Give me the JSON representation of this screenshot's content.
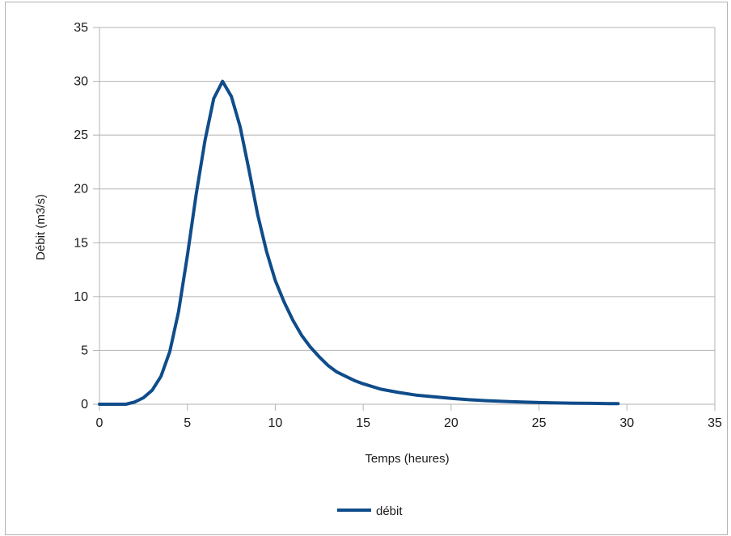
{
  "chart_data": {
    "type": "line",
    "xlabel": "Temps (heures)",
    "ylabel": "Débit (m3/s)",
    "xlim": [
      0,
      35
    ],
    "ylim": [
      0,
      35
    ],
    "x_ticks": [
      "0",
      "5",
      "10",
      "15",
      "20",
      "25",
      "30",
      "35"
    ],
    "y_ticks": [
      "0",
      "5",
      "10",
      "15",
      "20",
      "25",
      "30",
      "35"
    ],
    "grid": "horizontal",
    "legend_position": "bottom",
    "series": [
      {
        "name": "débit",
        "color": "#0f4c8a",
        "x": [
          0,
          0.5,
          1,
          1.5,
          2,
          2.5,
          3,
          3.5,
          4,
          4.5,
          5,
          5.5,
          6,
          6.5,
          7,
          7.5,
          8,
          8.5,
          9,
          9.5,
          10,
          10.5,
          11,
          11.5,
          12,
          12.5,
          13,
          13.5,
          14,
          14.5,
          15,
          16,
          17,
          18,
          19,
          20,
          21,
          22,
          23,
          24,
          25,
          26,
          27,
          28,
          29,
          29.5
        ],
        "y": [
          0,
          0,
          0,
          0,
          0.2,
          0.6,
          1.3,
          2.6,
          4.9,
          8.6,
          13.8,
          19.5,
          24.5,
          28.4,
          30,
          28.6,
          25.8,
          21.8,
          17.6,
          14.2,
          11.5,
          9.5,
          7.8,
          6.4,
          5.3,
          4.4,
          3.6,
          3.0,
          2.6,
          2.2,
          1.9,
          1.4,
          1.1,
          0.85,
          0.7,
          0.55,
          0.42,
          0.33,
          0.26,
          0.2,
          0.16,
          0.12,
          0.1,
          0.08,
          0.06,
          0.06
        ]
      }
    ]
  }
}
